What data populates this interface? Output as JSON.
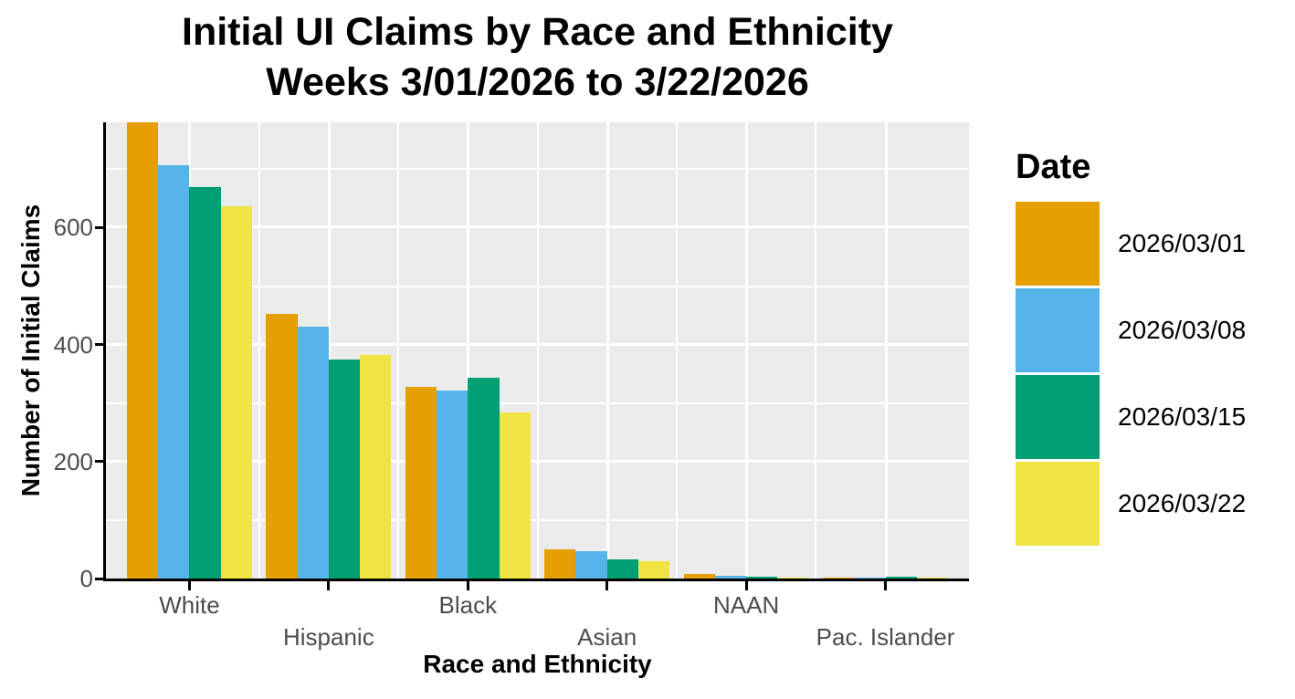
{
  "title": {
    "line1": "Initial UI Claims by Race and Ethnicity",
    "line2": "Weeks 3/01/2026 to 3/22/2026"
  },
  "axes": {
    "y_title": "Number of Initial Claims",
    "x_title": "Race and Ethnicity",
    "y_tick_labels": [
      "0",
      "200",
      "400",
      "600"
    ],
    "y_tick_values": [
      0,
      200,
      400,
      600
    ]
  },
  "legend": {
    "title": "Date",
    "position": "right"
  },
  "colors": {
    "panel_background": "#EBEBEB",
    "gridline": "#FFFFFF",
    "axis_line": "#000000",
    "tick_label": "#4D4D4D",
    "title_text": "#000000"
  },
  "chart_data": {
    "type": "bar",
    "grouping": "dodged",
    "title": "Initial UI Claims by Race and Ethnicity",
    "subtitle": "Weeks 3/01/2026 to 3/22/2026",
    "xlabel": "Race and Ethnicity",
    "ylabel": "Number of Initial Claims",
    "categories": [
      "White",
      "Hispanic",
      "Black",
      "Asian",
      "NAAN",
      "Pac. Islander"
    ],
    "series": [
      {
        "name": "2026/03/01",
        "color": "#E69F00",
        "values": [
          780,
          452,
          328,
          50,
          8,
          2
        ]
      },
      {
        "name": "2026/03/08",
        "color": "#56B4E9",
        "values": [
          707,
          431,
          322,
          47,
          4,
          2
        ]
      },
      {
        "name": "2026/03/15",
        "color": "#009E73",
        "values": [
          670,
          374,
          344,
          33,
          3,
          3
        ]
      },
      {
        "name": "2026/03/22",
        "color": "#F0E442",
        "values": [
          637,
          382,
          284,
          30,
          1,
          1
        ]
      }
    ],
    "ylim": [
      0,
      780
    ],
    "y_major_gridlines": [
      200,
      400,
      600
    ],
    "y_minor_gridlines": [
      100,
      300,
      500,
      700
    ],
    "grid": true,
    "legend_position": "right",
    "legend_title": "Date"
  }
}
